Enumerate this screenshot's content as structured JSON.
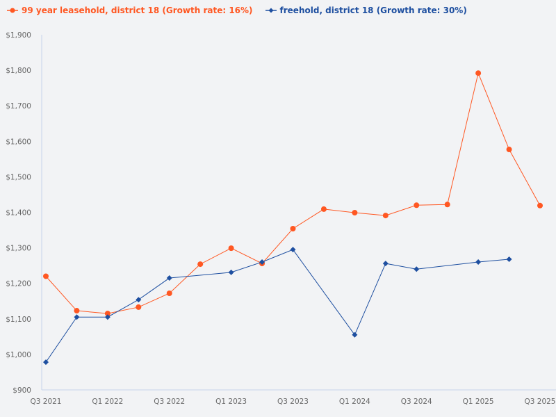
{
  "chart_data": {
    "type": "line",
    "categories": [
      "Q3 2021",
      "Q4 2021",
      "Q1 2022",
      "Q2 2022",
      "Q3 2022",
      "Q4 2022",
      "Q1 2023",
      "Q2 2023",
      "Q3 2023",
      "Q4 2023",
      "Q1 2024",
      "Q2 2024",
      "Q3 2024",
      "Q4 2024",
      "Q1 2025",
      "Q2 2025",
      "Q3 2025"
    ],
    "x_tick_labels": [
      "Q3 2021",
      "Q1 2022",
      "Q3 2022",
      "Q1 2023",
      "Q3 2023",
      "Q1 2024",
      "Q3 2024",
      "Q1 2025",
      "Q3 2025"
    ],
    "y_tick_labels": [
      "$900",
      "$1,000",
      "$1,100",
      "$1,200",
      "$1,300",
      "$1,400",
      "$1,500",
      "$1,600",
      "$1,700",
      "$1,800",
      "$1,900"
    ],
    "ylim": [
      900,
      1900
    ],
    "grid": false,
    "legend_position": "top-left",
    "series": [
      {
        "name": "99 year leasehold, district 18 (Growth rate: 16%)",
        "color": "#ff5722",
        "marker": "circle",
        "values": [
          1220,
          1123,
          1115,
          1133,
          1172,
          1254,
          1299,
          1256,
          1354,
          1409,
          1399,
          1391,
          1420,
          1422,
          1792,
          1577,
          1419
        ]
      },
      {
        "name": "freehold, district 18 (Growth rate: 30%)",
        "color": "#1e4fa0",
        "marker": "diamond",
        "values": [
          978,
          1105,
          1105,
          1154,
          1215,
          null,
          1231,
          1260,
          1295,
          null,
          1055,
          1256,
          1240,
          null,
          1260,
          1268,
          null
        ]
      }
    ]
  }
}
